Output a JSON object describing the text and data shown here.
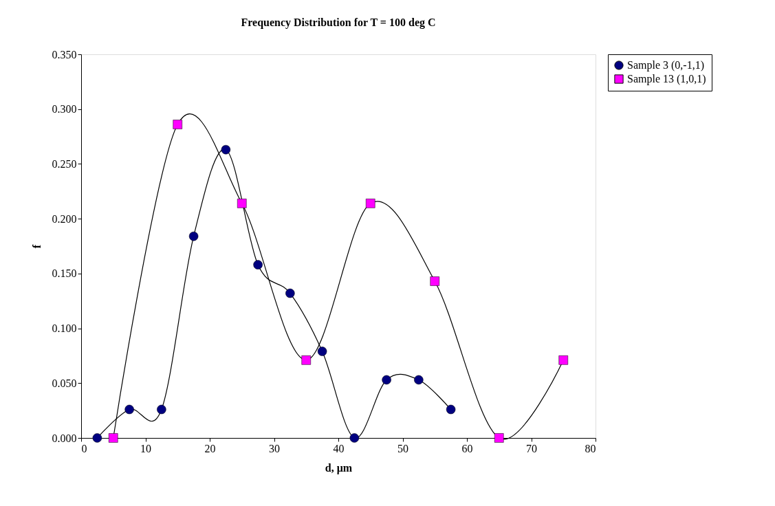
{
  "chart_data": {
    "type": "line",
    "title": "Frequency Distribution for T = 100 deg C",
    "xlabel": "d, μm",
    "ylabel": "f",
    "series": [
      {
        "name": "Sample 3 (0,-1,1)",
        "color": "#000080",
        "marker": "circle",
        "x": [
          2.5,
          7.5,
          12.5,
          17.5,
          22.5,
          27.5,
          32.5,
          37.5,
          42.5,
          47.5,
          52.5,
          57.5
        ],
        "values": [
          0,
          0.026,
          0.026,
          0.184,
          0.263,
          0.158,
          0.132,
          0.079,
          0,
          0.053,
          0.053,
          0.026
        ]
      },
      {
        "name": "Sample 13 (1,0,1)",
        "color": "#ff00ff",
        "marker": "square",
        "x": [
          5,
          15,
          25,
          35,
          45,
          55,
          65,
          75
        ],
        "values": [
          0,
          0.286,
          0.214,
          0.071,
          0.214,
          0.143,
          0,
          0.071
        ]
      }
    ],
    "xlim": [
      0,
      80
    ],
    "xticks": [
      0,
      10,
      20,
      30,
      40,
      50,
      60,
      70,
      80
    ],
    "ylim": [
      0,
      0.35
    ],
    "yticks": [
      {
        "value": 0,
        "label": "0.000"
      },
      {
        "value": 0.05,
        "label": "0.050"
      },
      {
        "value": 0.1,
        "label": "0.100"
      },
      {
        "value": 0.15,
        "label": "0.150"
      },
      {
        "value": 0.2,
        "label": "0.200"
      },
      {
        "value": 0.25,
        "label": "0.250"
      },
      {
        "value": 0.3,
        "label": "0.300"
      },
      {
        "value": 0.35,
        "label": "0.350"
      }
    ],
    "grid": false,
    "legend": "right",
    "line_style": "solid"
  }
}
